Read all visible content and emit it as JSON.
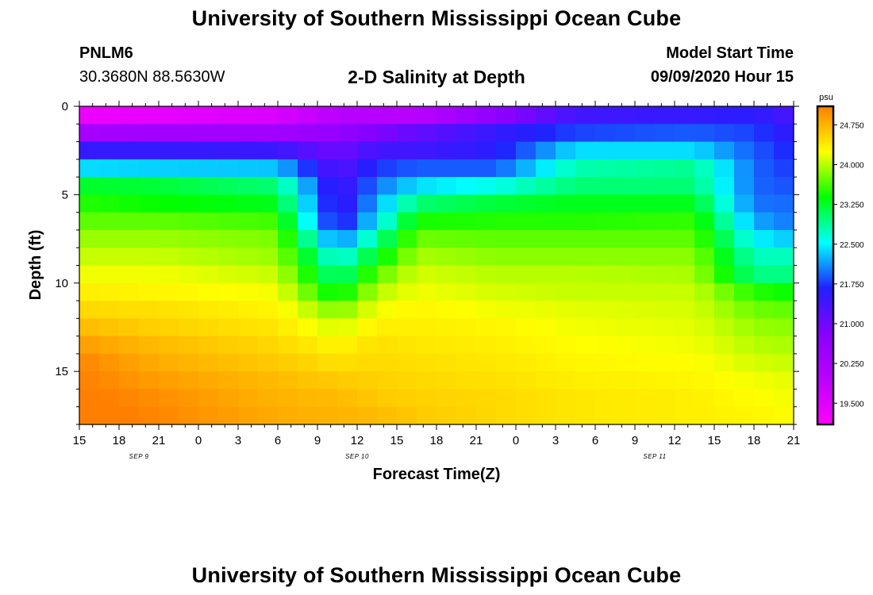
{
  "page": {
    "title_top": "University of Southern Mississippi Ocean Cube",
    "title_bottom": "University of Southern Mississippi Ocean Cube",
    "station_id": "PNLM6",
    "station_coords": "30.3680N 88.5630W",
    "model_start_label": "Model Start Time",
    "model_start_value": "09/09/2020 Hour 15"
  },
  "chart_data": {
    "type": "heatmap",
    "title": "2-D Salinity at Depth",
    "xlabel": "Forecast Time(Z)",
    "ylabel": "Depth (ft)",
    "ylim": [
      18,
      0
    ],
    "y_ticks": [
      0,
      5,
      10,
      15
    ],
    "y_tick_labels": [
      "0",
      "5",
      "10",
      "15"
    ],
    "x_tick_labels": [
      "15",
      "18",
      "21",
      "0",
      "3",
      "6",
      "9",
      "12",
      "15",
      "18",
      "21",
      "0",
      "3",
      "6",
      "9",
      "12",
      "15",
      "18",
      "21"
    ],
    "date_labels": [
      {
        "label": "SEP 9",
        "hours_from_start": 4.5
      },
      {
        "label": "SEP 10",
        "hours_from_start": 21
      },
      {
        "label": "SEP 11",
        "hours_from_start": 43.5
      }
    ],
    "time_range_hours": [
      0,
      54
    ],
    "time_step_hours": 1.5,
    "depth_levels": 18,
    "depth_step_ft": 1,
    "colorbar": {
      "unit": "psu",
      "min": 19.1,
      "max": 25.1,
      "ticks": [
        19.5,
        20.25,
        21.0,
        21.75,
        22.5,
        23.25,
        24.0,
        24.75
      ],
      "tick_labels": [
        "19.500",
        "20.250",
        "21.000",
        "21.750",
        "22.500",
        "23.250",
        "24.000",
        "24.750"
      ],
      "colors": [
        "#ff00ff",
        "#bb00ff",
        "#8800ff",
        "#2020ff",
        "#00ffff",
        "#00ff00",
        "#ffff00",
        "#ff8000"
      ]
    },
    "profile_hours": [
      0,
      6,
      15,
      19.5,
      22.5,
      25.5,
      31.5,
      37.5,
      46.5,
      51,
      54
    ],
    "profiles": [
      [
        19.3,
        20.3,
        21.5,
        22.4,
        23.25,
        23.5,
        23.7,
        23.9,
        24.05,
        24.2,
        24.35,
        24.5,
        24.7,
        24.9,
        25.05,
        25.1,
        25.15,
        25.25
      ],
      [
        19.4,
        20.4,
        21.5,
        22.35,
        23.2,
        23.4,
        23.7,
        23.9,
        24.05,
        24.2,
        24.3,
        24.45,
        24.55,
        24.7,
        24.8,
        24.9,
        25.0,
        25.05
      ],
      [
        19.6,
        20.4,
        21.45,
        22.3,
        23.0,
        23.3,
        23.6,
        23.8,
        23.9,
        24.05,
        24.2,
        24.3,
        24.4,
        24.5,
        24.6,
        24.7,
        24.75,
        24.8
      ],
      [
        20.0,
        20.6,
        21.0,
        21.2,
        21.35,
        21.4,
        21.5,
        22.0,
        22.55,
        22.9,
        23.3,
        23.8,
        24.1,
        24.3,
        24.45,
        24.6,
        24.7,
        24.75
      ],
      [
        20.0,
        20.9,
        21.4,
        21.75,
        22.0,
        22.2,
        22.45,
        22.9,
        23.3,
        23.7,
        24.0,
        24.2,
        24.35,
        24.45,
        24.5,
        24.55,
        24.6,
        24.7
      ],
      [
        20.0,
        21.1,
        21.4,
        21.9,
        22.4,
        23.0,
        23.45,
        23.75,
        23.95,
        24.1,
        24.2,
        24.3,
        24.35,
        24.4,
        24.45,
        24.5,
        24.55,
        24.6
      ],
      [
        20.7,
        21.5,
        21.6,
        21.9,
        22.6,
        23.2,
        23.5,
        23.7,
        23.85,
        24.0,
        24.1,
        24.2,
        24.3,
        24.35,
        24.4,
        24.45,
        24.5,
        24.5
      ],
      [
        21.4,
        21.8,
        22.4,
        22.8,
        23.0,
        23.3,
        23.5,
        23.7,
        23.85,
        24.0,
        24.05,
        24.15,
        24.2,
        24.25,
        24.3,
        24.35,
        24.4,
        24.4
      ],
      [
        21.5,
        21.9,
        22.4,
        22.9,
        23.0,
        23.3,
        23.55,
        23.7,
        23.85,
        23.95,
        24.05,
        24.1,
        24.15,
        24.2,
        24.25,
        24.3,
        24.35,
        24.35
      ],
      [
        21.6,
        21.8,
        21.9,
        21.95,
        21.95,
        22.0,
        22.2,
        22.5,
        22.75,
        22.95,
        23.5,
        23.75,
        23.9,
        24.0,
        24.1,
        24.2,
        24.25,
        24.3
      ],
      [
        21.3,
        21.5,
        21.65,
        21.75,
        21.85,
        21.95,
        22.0,
        22.3,
        22.75,
        22.95,
        23.4,
        23.7,
        23.85,
        23.95,
        24.05,
        24.15,
        24.2,
        24.25
      ]
    ]
  }
}
